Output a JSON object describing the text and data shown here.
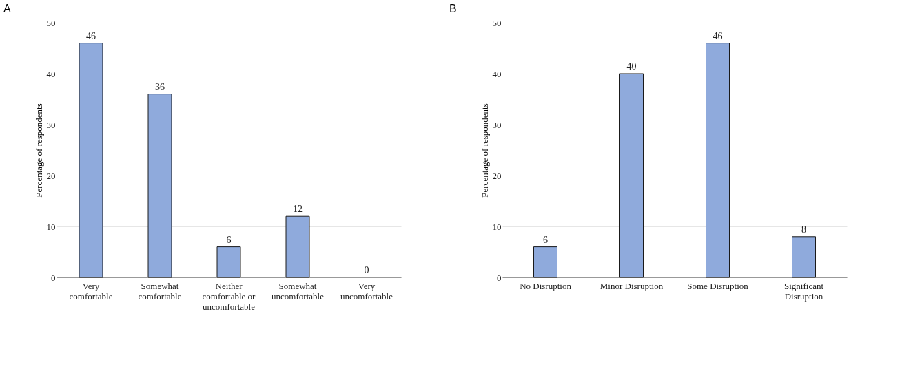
{
  "chart_data": [
    {
      "type": "bar",
      "title": "A",
      "ylabel": "Percentage of respondents",
      "categories": [
        "Very\ncomfortable",
        "Somewhat\ncomfortable",
        "Neither\ncomfortable or\nuncomfortable",
        "Somewhat\nuncomfortable",
        "Very\nuncomfortable"
      ],
      "values": [
        46,
        36,
        6,
        12,
        0
      ],
      "color": "#8faadc",
      "ylim": [
        0,
        50
      ],
      "yticks": [
        0,
        10,
        20,
        30,
        40,
        50
      ],
      "grid": "y",
      "data_labels": true
    },
    {
      "type": "bar",
      "title": "B",
      "ylabel": "Percentage of respondents",
      "categories": [
        "No Disruption",
        "Minor Disruption",
        "Some Disruption",
        "Significant\nDisruption"
      ],
      "values": [
        6,
        40,
        46,
        8
      ],
      "color": "#8faadc",
      "ylim": [
        0,
        50
      ],
      "yticks": [
        0,
        10,
        20,
        30,
        40,
        50
      ],
      "grid": "y",
      "data_labels": true
    }
  ]
}
